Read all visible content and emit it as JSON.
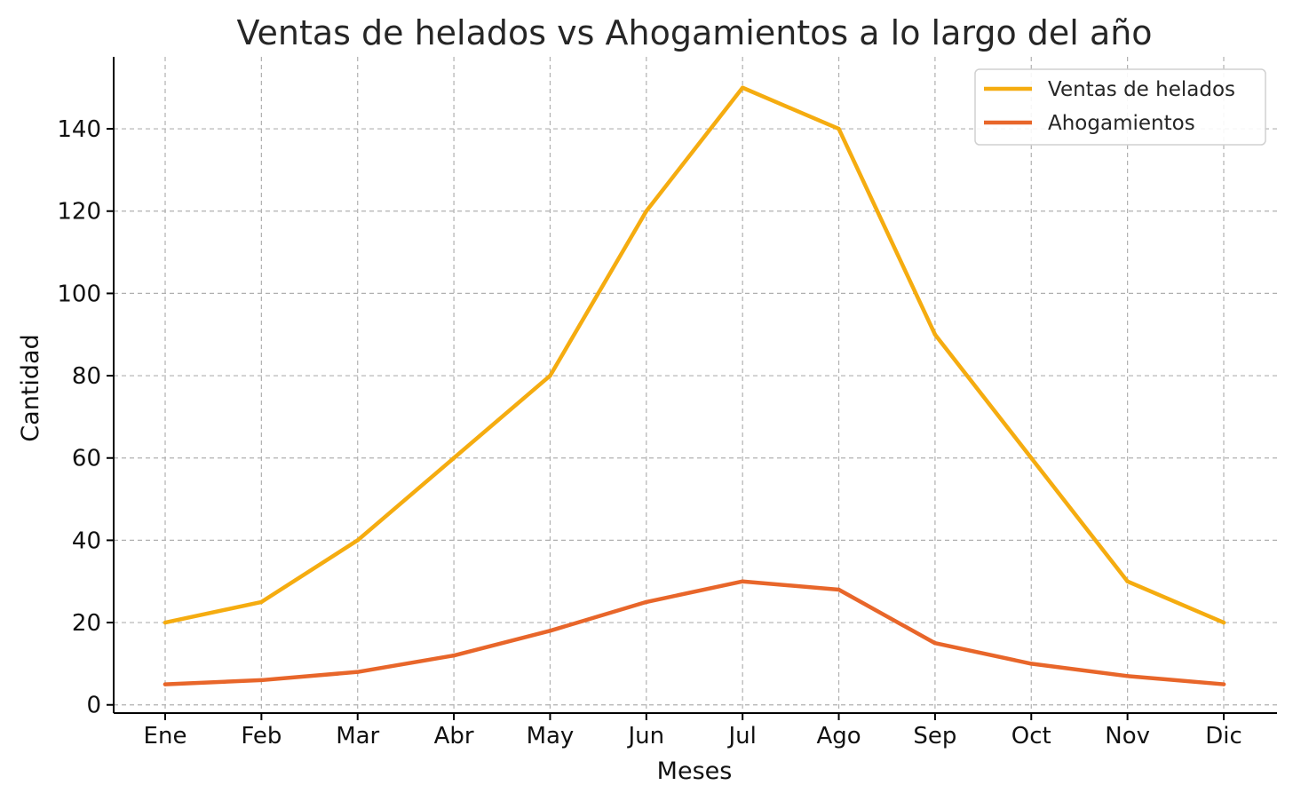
{
  "chart_data": {
    "type": "line",
    "title": "Ventas de helados vs Ahogamientos a lo largo del año",
    "xlabel": "Meses",
    "ylabel": "Cantidad",
    "categories": [
      "Ene",
      "Feb",
      "Mar",
      "Abr",
      "May",
      "Jun",
      "Jul",
      "Ago",
      "Sep",
      "Oct",
      "Nov",
      "Dic"
    ],
    "series": [
      {
        "name": "Ventas de helados",
        "color": "#f5ac10",
        "values": [
          20,
          25,
          40,
          60,
          80,
          120,
          150,
          140,
          90,
          60,
          30,
          20
        ]
      },
      {
        "name": "Ahogamientos",
        "color": "#e8662a",
        "values": [
          5,
          6,
          8,
          12,
          18,
          25,
          30,
          28,
          15,
          10,
          7,
          5
        ]
      }
    ],
    "yticks": [
      0,
      20,
      40,
      60,
      80,
      100,
      120,
      140
    ],
    "ylim": [
      -2,
      157.5
    ],
    "grid": true,
    "legend_position": "top-right"
  }
}
